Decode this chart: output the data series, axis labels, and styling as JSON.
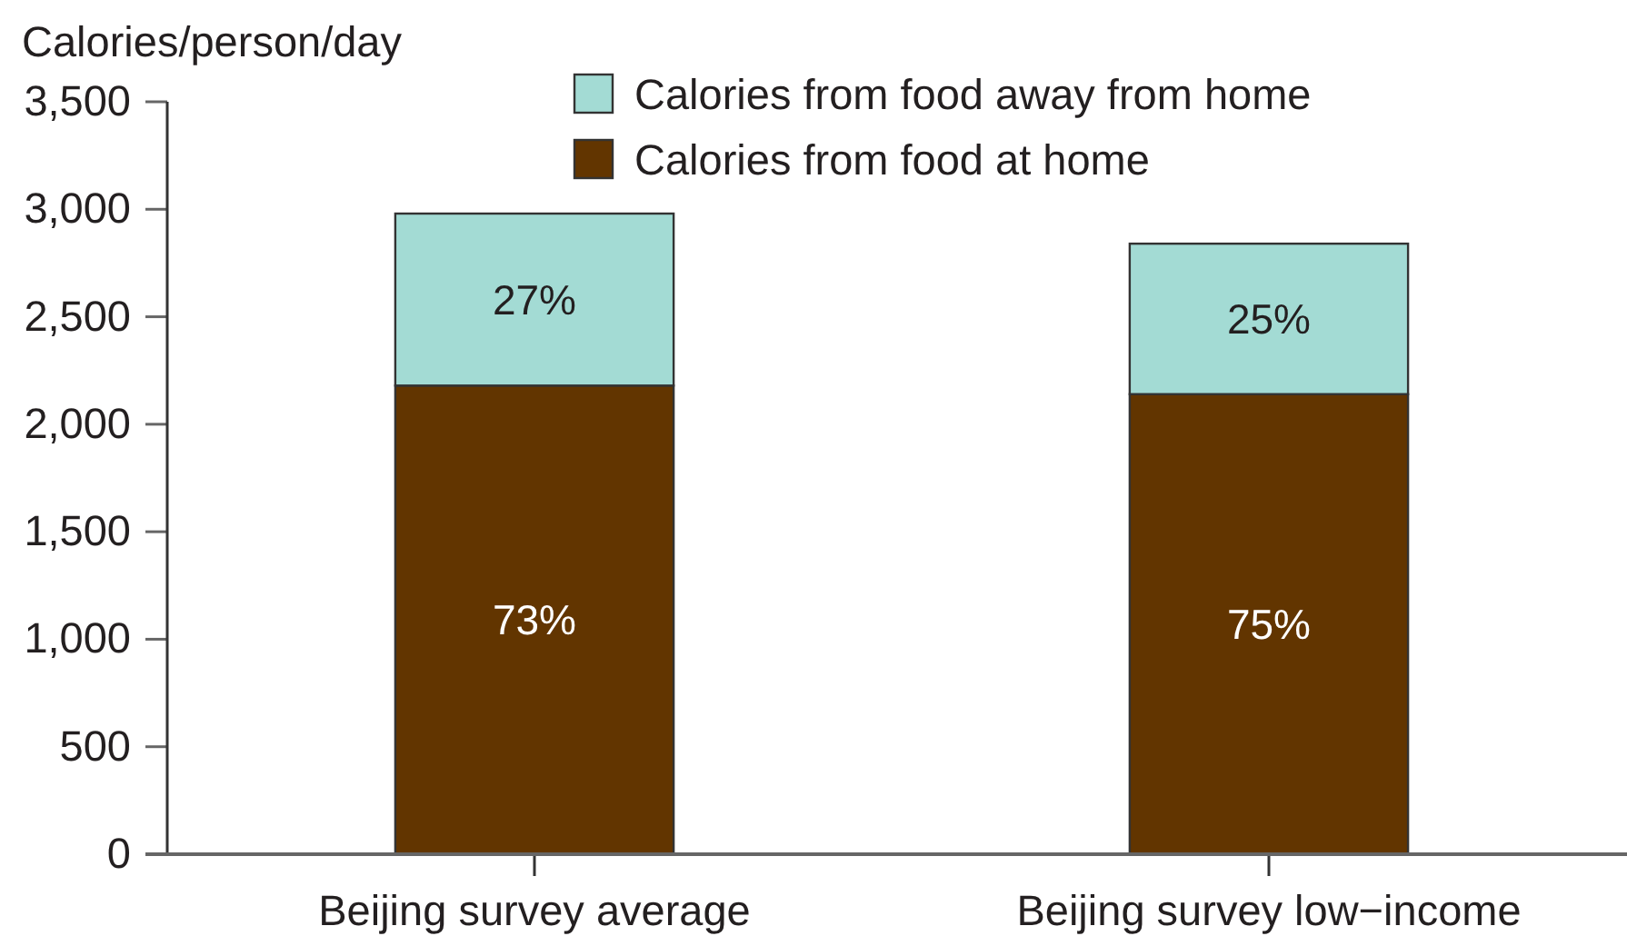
{
  "chart_data": {
    "type": "bar",
    "stacked": true,
    "ylabel": "Calories/person/day",
    "categories": [
      "Beijing survey average",
      "Beijing survey low−income"
    ],
    "series": [
      {
        "name": "Calories from food at home",
        "color": "#623500",
        "values": [
          2180,
          2140
        ]
      },
      {
        "name": "Calories from food away from home",
        "color": "#a3dbd4",
        "values": [
          800,
          700
        ]
      }
    ],
    "ylim": [
      0,
      3500
    ],
    "yticks": [
      0,
      500,
      {
        "value": 1000,
        "label": "1,000"
      },
      {
        "value": 1500,
        "label": "1,500"
      },
      {
        "value": 2000,
        "label": "2,000"
      },
      {
        "value": 2500,
        "label": "2,500"
      },
      {
        "value": 3000,
        "label": "3,000"
      },
      {
        "value": 3500,
        "label": "3,500"
      }
    ],
    "annotations": [
      "73%",
      "75%",
      "27%",
      "25%"
    ],
    "legend": "top"
  }
}
